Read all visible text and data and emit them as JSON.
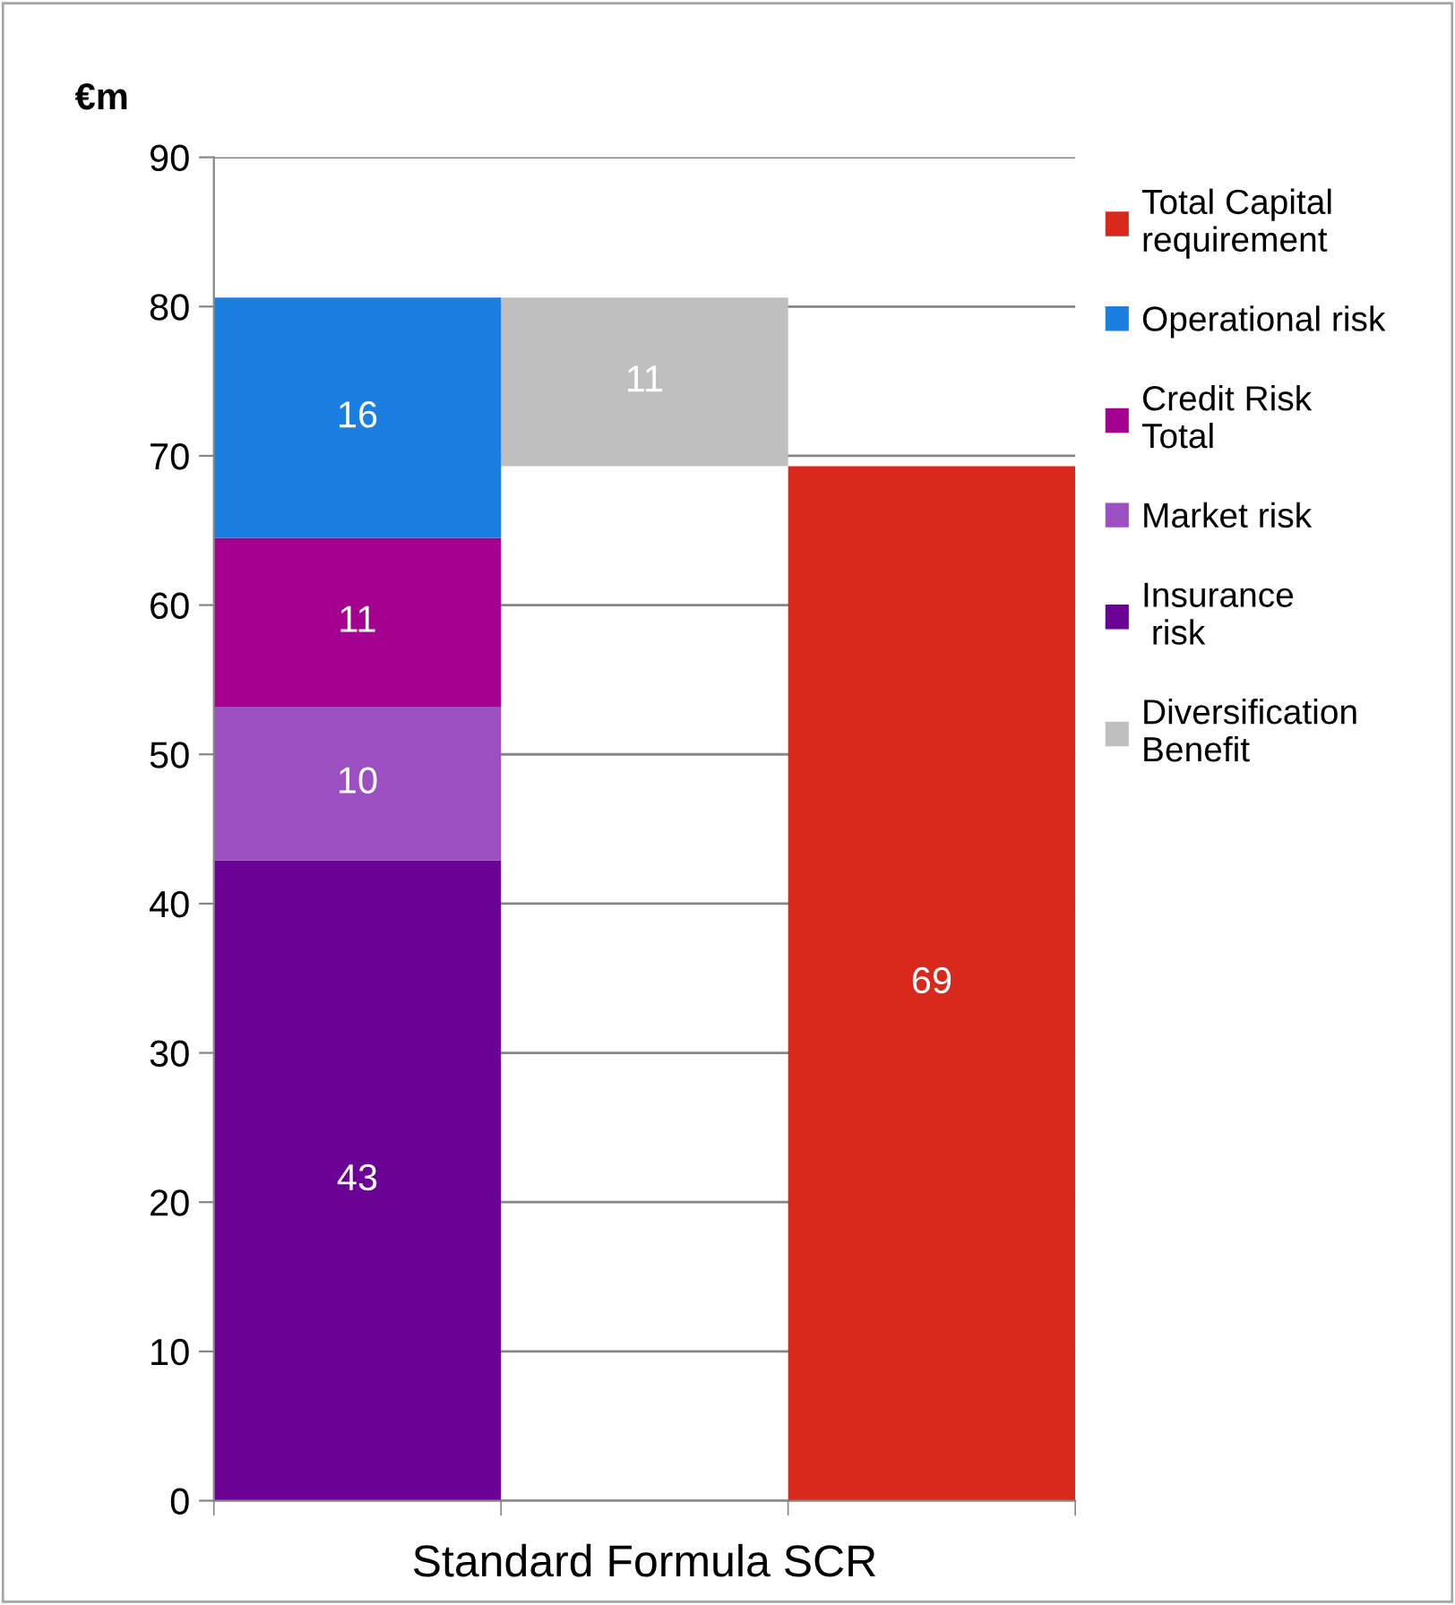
{
  "chart_data": {
    "type": "bar",
    "stacked": true,
    "xlabel": "Standard Formula SCR",
    "ylabel": "€m",
    "categories": [
      null,
      null,
      null
    ],
    "series": [
      {
        "name": "Diversification\nBenefit",
        "color": "#bfbfbf",
        "values": [
          null,
          11.3,
          null
        ],
        "base": [
          null,
          69.3,
          null
        ],
        "value_labels": [
          null,
          "11",
          null
        ]
      },
      {
        "name": "Insurance\n risk",
        "color": "#6a0094",
        "values": [
          42.9,
          null,
          null
        ],
        "value_labels": [
          "43",
          null,
          null
        ]
      },
      {
        "name": "Market risk",
        "color": "#9b4fc0",
        "values": [
          10.3,
          null,
          null
        ],
        "value_labels": [
          "10",
          null,
          null
        ]
      },
      {
        "name": "Credit Risk\nTotal",
        "color": "#a3008f",
        "values": [
          11.3,
          null,
          null
        ],
        "value_labels": [
          "11",
          null,
          null
        ]
      },
      {
        "name": "Operational risk",
        "color": "#1a7fe0",
        "values": [
          16.1,
          null,
          null
        ],
        "value_labels": [
          "16",
          null,
          null
        ]
      },
      {
        "name": "Total Capital\nrequirement",
        "color": "#d9291c",
        "values": [
          null,
          null,
          69.3
        ],
        "value_labels": [
          null,
          null,
          "69"
        ]
      }
    ],
    "ylim": [
      0,
      90
    ],
    "yticks": [
      0,
      10,
      20,
      30,
      40,
      50,
      60,
      70,
      80,
      90
    ],
    "grid": "y",
    "legend": "right"
  }
}
